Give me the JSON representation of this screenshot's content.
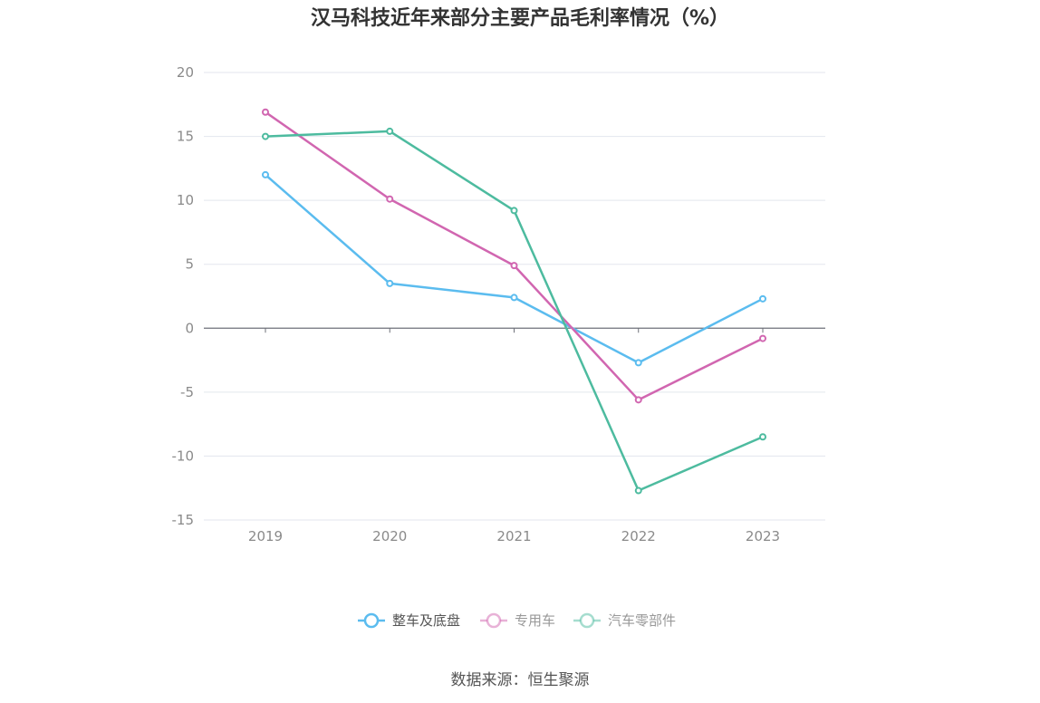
{
  "chart_data": {
    "type": "line",
    "title": "汉马科技近年来部分主要产品毛利率情况（%）",
    "categories": [
      "2019",
      "2020",
      "2021",
      "2022",
      "2023"
    ],
    "ylim": [
      -15,
      20
    ],
    "yticks": [
      20,
      15,
      10,
      5,
      0,
      -5,
      -10,
      -15
    ],
    "grid": true,
    "legend_position": "bottom",
    "series": [
      {
        "name": "整车及底盘",
        "color": "#5bbcef",
        "values": [
          12.0,
          3.5,
          2.4,
          -2.7,
          2.3
        ]
      },
      {
        "name": "专用车",
        "color": "#d166b0",
        "values": [
          16.9,
          10.1,
          4.9,
          -5.6,
          -0.8
        ]
      },
      {
        "name": "汽车零部件",
        "color": "#4dbb9f",
        "values": [
          15.0,
          15.4,
          9.2,
          -12.7,
          -8.5
        ]
      }
    ]
  },
  "source_text": "数据来源：恒生聚源"
}
